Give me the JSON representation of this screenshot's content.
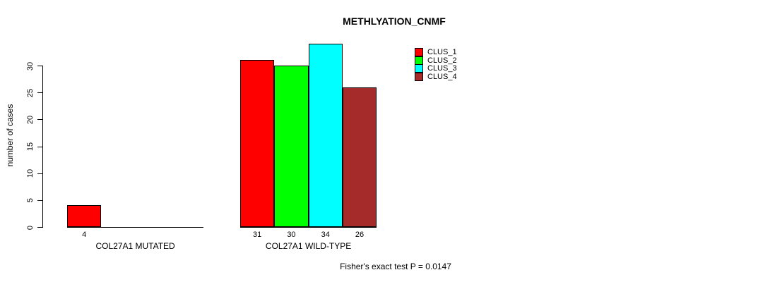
{
  "page": {
    "background": "#FFFFFF"
  },
  "chart_data": {
    "type": "bar",
    "title": "METHLYATION_CNMF",
    "xlabel": "",
    "ylabel": "number of cases",
    "ylim": [
      0,
      34
    ],
    "yticks": [
      0,
      5,
      10,
      15,
      20,
      25,
      30
    ],
    "grid": false,
    "bar_edge_color": "#000000",
    "series_names": [
      "CLUS_1",
      "CLUS_2",
      "CLUS_3",
      "CLUS_4"
    ],
    "series_colors": [
      "#FF0000",
      "#00FF00",
      "#00FFFF",
      "#A52A2A"
    ],
    "legend": {
      "position": "top-right",
      "entries": [
        {
          "label": "CLUS_1",
          "color": "#FF0000"
        },
        {
          "label": "CLUS_2",
          "color": "#00FF00"
        },
        {
          "label": "CLUS_3",
          "color": "#00FFFF"
        },
        {
          "label": "CLUS_4",
          "color": "#A52A2A"
        }
      ]
    },
    "groups": [
      {
        "label": "COL27A1 MUTATED",
        "values": [
          4,
          null,
          null,
          null
        ],
        "value_labels": [
          "4",
          null,
          null,
          null
        ]
      },
      {
        "label": "COL27A1 WILD-TYPE",
        "values": [
          31,
          30,
          34,
          26
        ],
        "value_labels": [
          "31",
          "30",
          "34",
          "26"
        ]
      }
    ],
    "annotation": "Fisher's exact test P = 0.0147"
  }
}
